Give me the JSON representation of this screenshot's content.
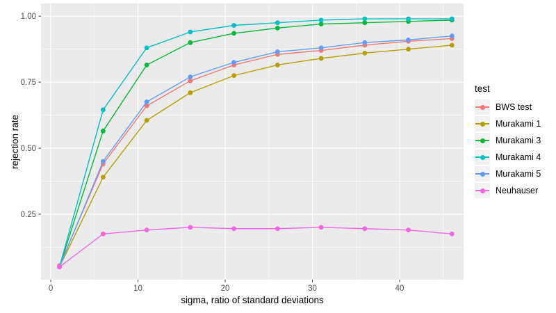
{
  "chart_data": {
    "type": "line",
    "title": "",
    "xlabel": "sigma, ratio of standard deviations",
    "ylabel": "rejection rate",
    "legend_title": "test",
    "legend_position": "right",
    "grid": true,
    "panel_bg": "#EBEBEB",
    "grid_color": "#FFFFFF",
    "tick_color": "#333333",
    "tick_label_color": "#4D4D4D",
    "legend_key_bg": "#F2F2F2",
    "xlim": [
      -1.12,
      47.33
    ],
    "ylim": [
      0.002,
      1.048
    ],
    "x_major_ticks": [
      0,
      10,
      20,
      30,
      40
    ],
    "x_tick_labels": [
      "0",
      "10",
      "20",
      "30",
      "40"
    ],
    "x_minor_ticks": [
      5,
      15,
      25,
      35,
      45
    ],
    "y_major_ticks": [
      0.25,
      0.5,
      0.75,
      1.0
    ],
    "y_tick_labels": [
      "0.25",
      "0.50",
      "0.75",
      "1.00"
    ],
    "y_minor_ticks": [
      0.125,
      0.375,
      0.625,
      0.875
    ],
    "x": [
      1,
      6,
      11,
      16,
      21,
      26,
      31,
      36,
      41,
      46
    ],
    "series": [
      {
        "name": "BWS test",
        "color": "#F8766D",
        "values": [
          0.055,
          0.44,
          0.66,
          0.755,
          0.815,
          0.855,
          0.87,
          0.89,
          0.905,
          0.915
        ]
      },
      {
        "name": "Murakami 1",
        "color": "#B79F00",
        "values": [
          0.05,
          0.39,
          0.605,
          0.71,
          0.775,
          0.815,
          0.84,
          0.86,
          0.875,
          0.89
        ]
      },
      {
        "name": "Murakami 3",
        "color": "#00BA38",
        "values": [
          0.05,
          0.565,
          0.815,
          0.9,
          0.935,
          0.955,
          0.97,
          0.975,
          0.98,
          0.985
        ]
      },
      {
        "name": "Murakami 4",
        "color": "#00BFC4",
        "values": [
          0.05,
          0.645,
          0.88,
          0.94,
          0.965,
          0.975,
          0.985,
          0.99,
          0.99,
          0.99
        ]
      },
      {
        "name": "Murakami 5",
        "color": "#619CFF",
        "values": [
          0.05,
          0.45,
          0.675,
          0.77,
          0.825,
          0.865,
          0.88,
          0.9,
          0.91,
          0.925
        ]
      },
      {
        "name": "Neuhauser",
        "color": "#F564E3",
        "values": [
          0.05,
          0.175,
          0.19,
          0.2,
          0.195,
          0.195,
          0.2,
          0.195,
          0.19,
          0.175
        ]
      }
    ]
  }
}
